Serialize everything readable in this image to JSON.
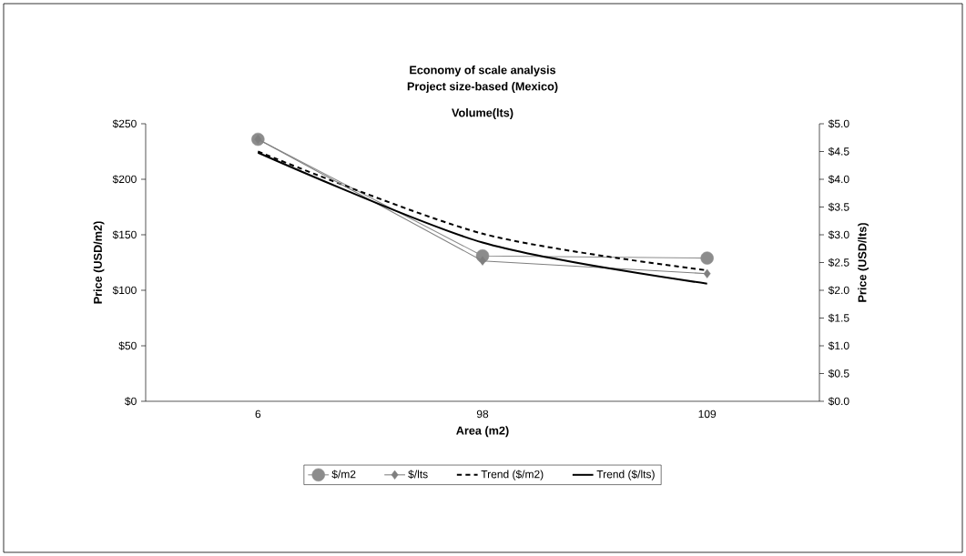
{
  "chart_data": {
    "type": "line",
    "title": "Economy of scale analysis",
    "subtitle": "Project size-based (Mexico)",
    "annotations": [
      "Volume(lts)"
    ],
    "xlabel": "Area (m2)",
    "ylabel": "Price (USD/m2)",
    "y2label": "Price (USD/lts)",
    "categories": [
      "6",
      "98",
      "109"
    ],
    "ylim": [
      0,
      250
    ],
    "yticks": [
      {
        "value": 0,
        "label": "$0"
      },
      {
        "value": 50,
        "label": "$50"
      },
      {
        "value": 100,
        "label": "$100"
      },
      {
        "value": 150,
        "label": "$150"
      },
      {
        "value": 200,
        "label": "$200"
      },
      {
        "value": 250,
        "label": "$250"
      }
    ],
    "y2lim": [
      0,
      5
    ],
    "y2ticks": [
      {
        "value": 0,
        "label": "$0.0"
      },
      {
        "value": 0.5,
        "label": "$0.5"
      },
      {
        "value": 1,
        "label": "$1.0"
      },
      {
        "value": 1.5,
        "label": "$1.5"
      },
      {
        "value": 2,
        "label": "$2.0"
      },
      {
        "value": 2.5,
        "label": "$2.5"
      },
      {
        "value": 3,
        "label": "$3.0"
      },
      {
        "value": 3.5,
        "label": "$3.5"
      },
      {
        "value": 4,
        "label": "$4.0"
      },
      {
        "value": 4.5,
        "label": "$4.5"
      },
      {
        "value": 5,
        "label": "$5.0"
      }
    ],
    "legend": "bottom",
    "series": [
      {
        "name": "$/m2",
        "color": "#8c8c8c",
        "values": [
          236,
          131,
          129
        ],
        "marker": "circle",
        "line_style": "solid"
      },
      {
        "name": "$/lts",
        "color": "#7f7f7f",
        "values": [
          4.72,
          2.53,
          2.3
        ],
        "marker": "diamond",
        "line_style": "solid",
        "axis": "y2"
      },
      {
        "name": "Trend ($/m2)",
        "color": "#000000",
        "values": [
          225,
          151,
          118
        ],
        "marker": "none",
        "line_style": "dashed"
      },
      {
        "name": "Trend ($/lts)",
        "color": "#000000",
        "values": [
          4.48,
          2.86,
          2.12
        ],
        "marker": "none",
        "line_style": "solid",
        "axis": "y2"
      }
    ]
  }
}
